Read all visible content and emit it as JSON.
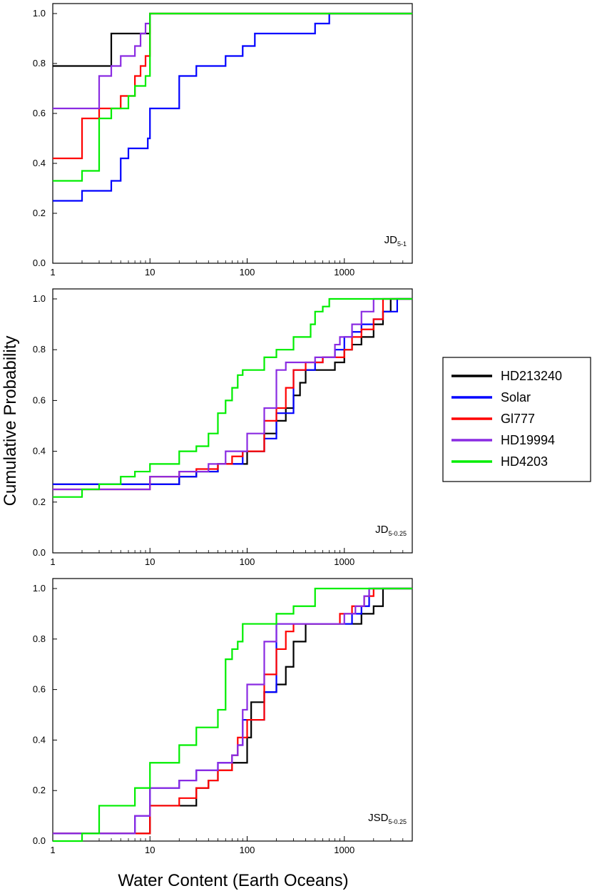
{
  "figure": {
    "ylabel": "Cumulative Probability",
    "xlabel": "Water Content (Earth Oceans)",
    "legend_entries": [
      {
        "name": "HD213240",
        "color": "#000000"
      },
      {
        "name": "Solar",
        "color": "#0000ff"
      },
      {
        "name": "Gl777",
        "color": "#ff0000"
      },
      {
        "name": "HD19994",
        "color": "#8a2be2"
      },
      {
        "name": "HD4203",
        "color": "#00ee00"
      }
    ]
  },
  "chart_data": [
    {
      "type": "line",
      "step": true,
      "xscale": "log",
      "xlim": [
        1,
        5000
      ],
      "ylim": [
        0,
        1
      ],
      "xticks": [
        1,
        10,
        100,
        1000
      ],
      "xtick_labels": [
        "1",
        "10",
        "100",
        "1000"
      ],
      "yticks": [
        0,
        0.2,
        0.4,
        0.6,
        0.8,
        1.0
      ],
      "ytick_labels": [
        "0.0",
        "0.2",
        "0.4",
        "0.6",
        "0.8",
        "1.0"
      ],
      "label_main": "JD",
      "label_sub": "5-1",
      "series": [
        {
          "name": "HD213240",
          "color": "#000000",
          "x": [
            1,
            4,
            10,
            5000
          ],
          "y": [
            0.79,
            0.92,
            1.0,
            1.0
          ]
        },
        {
          "name": "Solar",
          "color": "#0000ff",
          "x": [
            1,
            2,
            3,
            4,
            5,
            6,
            8,
            9.5,
            10,
            20,
            30,
            60,
            90,
            120,
            500,
            700,
            5000
          ],
          "y": [
            0.25,
            0.29,
            0.29,
            0.33,
            0.42,
            0.46,
            0.46,
            0.5,
            0.62,
            0.75,
            0.79,
            0.83,
            0.87,
            0.92,
            0.96,
            1.0,
            1.0
          ]
        },
        {
          "name": "Gl777",
          "color": "#ff0000",
          "x": [
            1,
            2,
            3,
            4,
            5,
            6,
            7,
            8,
            9,
            10,
            5000
          ],
          "y": [
            0.42,
            0.58,
            0.62,
            0.62,
            0.67,
            0.67,
            0.75,
            0.79,
            0.83,
            1.0,
            1.0
          ]
        },
        {
          "name": "HD19994",
          "color": "#8a2be2",
          "x": [
            1,
            3,
            4,
            5,
            7,
            8,
            9,
            10
          ],
          "y": [
            0.62,
            0.75,
            0.79,
            0.83,
            0.87,
            0.92,
            0.96,
            1.0
          ]
        },
        {
          "name": "HD4203",
          "color": "#00ee00",
          "x": [
            1,
            2,
            3,
            4,
            5,
            6,
            7,
            8,
            9,
            10,
            5000
          ],
          "y": [
            0.33,
            0.37,
            0.58,
            0.62,
            0.62,
            0.67,
            0.71,
            0.71,
            0.75,
            1.0,
            1.0
          ]
        }
      ]
    },
    {
      "type": "line",
      "step": true,
      "xscale": "log",
      "xlim": [
        1,
        5000
      ],
      "ylim": [
        0,
        1
      ],
      "xticks": [
        1,
        10,
        100,
        1000
      ],
      "xtick_labels": [
        "1",
        "10",
        "100",
        "1000"
      ],
      "yticks": [
        0,
        0.2,
        0.4,
        0.6,
        0.8,
        1.0
      ],
      "ytick_labels": [
        "0.0",
        "0.2",
        "0.4",
        "0.6",
        "0.8",
        "1.0"
      ],
      "label_main": "JD",
      "label_sub": "5-0.25",
      "series": [
        {
          "name": "HD213240",
          "color": "#000000",
          "x": [
            1,
            20,
            30,
            50,
            100,
            150,
            200,
            250,
            300,
            350,
            400,
            800,
            1000,
            1200,
            1500,
            2000,
            2500,
            3000,
            5000
          ],
          "y": [
            0.27,
            0.3,
            0.32,
            0.35,
            0.4,
            0.47,
            0.52,
            0.57,
            0.62,
            0.67,
            0.72,
            0.75,
            0.8,
            0.82,
            0.85,
            0.9,
            0.95,
            1.0,
            1.0
          ]
        },
        {
          "name": "Solar",
          "color": "#0000ff",
          "x": [
            1,
            10,
            20,
            30,
            50,
            90,
            150,
            200,
            300,
            500,
            600,
            800,
            1000,
            1200,
            1500,
            2000,
            2500,
            3500,
            5000
          ],
          "y": [
            0.27,
            0.27,
            0.3,
            0.32,
            0.35,
            0.4,
            0.45,
            0.55,
            0.72,
            0.75,
            0.77,
            0.8,
            0.85,
            0.87,
            0.9,
            0.92,
            0.95,
            1.0,
            1.0
          ]
        },
        {
          "name": "Gl777",
          "color": "#ff0000",
          "x": [
            1,
            10,
            20,
            30,
            50,
            70,
            90,
            150,
            200,
            250,
            300,
            400,
            600,
            1000,
            1200,
            1500,
            2000,
            2500,
            5000
          ],
          "y": [
            0.25,
            0.3,
            0.32,
            0.33,
            0.35,
            0.38,
            0.4,
            0.52,
            0.57,
            0.65,
            0.72,
            0.75,
            0.77,
            0.8,
            0.85,
            0.88,
            0.92,
            1.0,
            1.0
          ]
        },
        {
          "name": "HD19994",
          "color": "#8a2be2",
          "x": [
            1,
            10,
            20,
            40,
            60,
            100,
            150,
            200,
            250,
            500,
            800,
            900,
            1200,
            1500,
            2000,
            5000
          ],
          "y": [
            0.25,
            0.3,
            0.32,
            0.35,
            0.4,
            0.47,
            0.57,
            0.72,
            0.75,
            0.77,
            0.82,
            0.85,
            0.9,
            0.95,
            1.0,
            1.0
          ]
        },
        {
          "name": "HD4203",
          "color": "#00ee00",
          "x": [
            1,
            2,
            3,
            5,
            7,
            10,
            20,
            30,
            40,
            50,
            60,
            70,
            80,
            90,
            100,
            150,
            200,
            300,
            450,
            500,
            600,
            700,
            5000
          ],
          "y": [
            0.22,
            0.25,
            0.27,
            0.3,
            0.32,
            0.35,
            0.4,
            0.42,
            0.47,
            0.55,
            0.6,
            0.65,
            0.7,
            0.72,
            0.72,
            0.77,
            0.8,
            0.85,
            0.9,
            0.95,
            0.97,
            1.0,
            1.0
          ]
        }
      ]
    },
    {
      "type": "line",
      "step": true,
      "xscale": "log",
      "xlim": [
        1,
        5000
      ],
      "ylim": [
        0,
        1
      ],
      "xticks": [
        1,
        10,
        100,
        1000
      ],
      "xtick_labels": [
        "1",
        "10",
        "100",
        "1000"
      ],
      "yticks": [
        0,
        0.2,
        0.4,
        0.6,
        0.8,
        1.0
      ],
      "ytick_labels": [
        "0.0",
        "0.2",
        "0.4",
        "0.6",
        "0.8",
        "1.0"
      ],
      "label_main": "JSD",
      "label_sub": "5-0.25",
      "series": [
        {
          "name": "HD213240",
          "color": "#000000",
          "x": [
            1,
            10,
            20,
            30,
            40,
            50,
            70,
            100,
            110,
            150,
            200,
            250,
            300,
            400,
            1500,
            2000,
            2500,
            5000
          ],
          "y": [
            0.03,
            0.14,
            0.14,
            0.21,
            0.24,
            0.28,
            0.31,
            0.41,
            0.55,
            0.59,
            0.62,
            0.69,
            0.79,
            0.86,
            0.9,
            0.93,
            1.0,
            1.0
          ]
        },
        {
          "name": "Solar",
          "color": "#0000ff",
          "x": [
            1,
            7,
            10,
            20,
            30,
            50,
            70,
            80,
            90,
            150,
            200,
            300,
            1200,
            1500,
            1800,
            5000
          ],
          "y": [
            0.03,
            0.1,
            0.21,
            0.24,
            0.28,
            0.31,
            0.34,
            0.38,
            0.48,
            0.59,
            0.86,
            0.86,
            0.9,
            0.93,
            1.0,
            1.0
          ]
        },
        {
          "name": "Gl777",
          "color": "#ff0000",
          "x": [
            1,
            10,
            20,
            30,
            40,
            50,
            70,
            80,
            100,
            150,
            200,
            250,
            300,
            900,
            1200,
            1600,
            2000,
            5000
          ],
          "y": [
            0.03,
            0.14,
            0.17,
            0.21,
            0.24,
            0.28,
            0.34,
            0.41,
            0.48,
            0.66,
            0.76,
            0.83,
            0.86,
            0.9,
            0.93,
            0.97,
            1.0,
            1.0
          ]
        },
        {
          "name": "HD19994",
          "color": "#8a2be2",
          "x": [
            1,
            7,
            10,
            20,
            30,
            50,
            70,
            80,
            90,
            100,
            150,
            200,
            1000,
            1300,
            1600,
            1800,
            5000
          ],
          "y": [
            0.03,
            0.1,
            0.21,
            0.24,
            0.28,
            0.31,
            0.34,
            0.38,
            0.52,
            0.62,
            0.79,
            0.86,
            0.9,
            0.93,
            0.97,
            1.0,
            1.0
          ]
        },
        {
          "name": "HD4203",
          "color": "#00ee00",
          "x": [
            1,
            2,
            3,
            7,
            10,
            20,
            30,
            50,
            60,
            70,
            80,
            90,
            200,
            300,
            500,
            5000
          ],
          "y": [
            0.0,
            0.03,
            0.14,
            0.21,
            0.31,
            0.38,
            0.45,
            0.52,
            0.72,
            0.76,
            0.79,
            0.86,
            0.9,
            0.93,
            1.0,
            1.0
          ]
        }
      ]
    }
  ]
}
